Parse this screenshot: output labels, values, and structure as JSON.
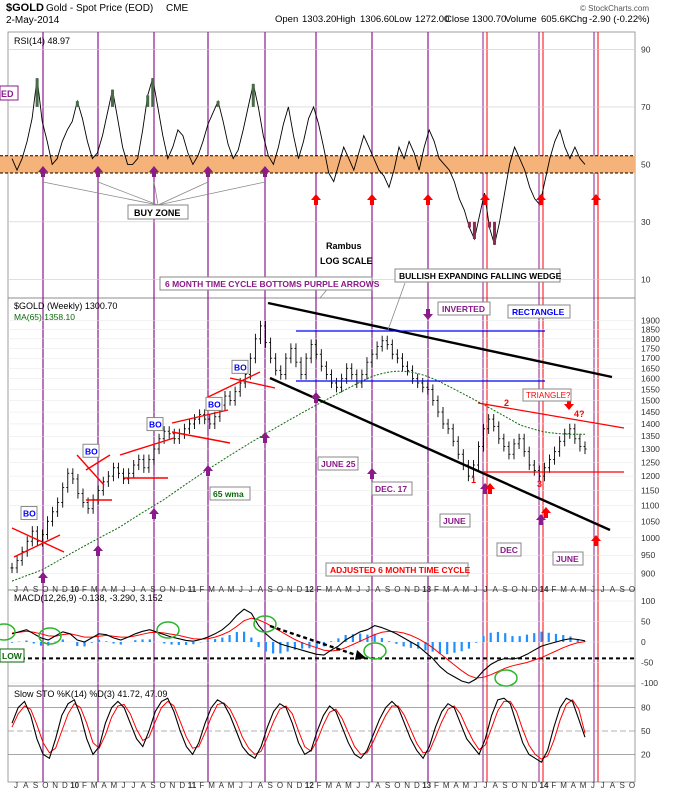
{
  "header": {
    "symbol": "$GOLD",
    "name": "Gold - Spot Price (EOD)",
    "exchange": "CME",
    "date": "2-May-2014",
    "open_label": "Open",
    "open": "1303.20",
    "high_label": "High",
    "high": "1306.60",
    "low_label": "Low",
    "low": "1272.00",
    "close_label": "Close",
    "close": "1300.70",
    "volume_label": "Volume",
    "volume": "605.6K",
    "chg_label": "Chg",
    "chg": "-2.90 (-0.22%)",
    "watermark": "© StockCharts.com"
  },
  "rsi": {
    "label": "RSI(14) 48.97",
    "scale": [
      90,
      70,
      50,
      30,
      10
    ],
    "left_tag": "ED",
    "buy_zone": "BUY ZONE",
    "purple_arrow_x": [
      43,
      98,
      154,
      208,
      265
    ],
    "red_arrow_x": [
      316,
      372,
      428,
      485,
      541,
      596
    ],
    "values": [
      52,
      48,
      52,
      58,
      66,
      80,
      65,
      58,
      50,
      52,
      58,
      62,
      65,
      72,
      66,
      58,
      52,
      54,
      60,
      68,
      76,
      66,
      56,
      50,
      50,
      52,
      62,
      74,
      80,
      70,
      60,
      52,
      56,
      62,
      60,
      54,
      50,
      53,
      58,
      64,
      68,
      72,
      65,
      57,
      52,
      55,
      62,
      70,
      78,
      70,
      60,
      53,
      50,
      56,
      64,
      70,
      60,
      52,
      58,
      66,
      70,
      64,
      56,
      47,
      44,
      50,
      56,
      52,
      48,
      54,
      60,
      56,
      52,
      48,
      46,
      42,
      48,
      56,
      52,
      58,
      54,
      48,
      56,
      62,
      58,
      52,
      50,
      48,
      44,
      38,
      34,
      28,
      24,
      32,
      40,
      28,
      22,
      30,
      40,
      50,
      56,
      52,
      48,
      42,
      38,
      36,
      44,
      52,
      58,
      62,
      56,
      52,
      56,
      52,
      50
    ]
  },
  "main": {
    "label": "$GOLD (Weekly) 1300.70",
    "ma_label": "MA(65) 1358.10",
    "y_ticks": [
      1900,
      1850,
      1800,
      1750,
      1700,
      1650,
      1600,
      1550,
      1500,
      1450,
      1400,
      1350,
      1300,
      1250,
      1200,
      1150,
      1100,
      1050,
      1000,
      950,
      900
    ],
    "closes": [
      915,
      935,
      960,
      990,
      1020,
      990,
      1010,
      1050,
      1080,
      1110,
      1160,
      1210,
      1190,
      1140,
      1110,
      1090,
      1120,
      1150,
      1180,
      1200,
      1230,
      1210,
      1190,
      1210,
      1240,
      1260,
      1230,
      1260,
      1300,
      1340,
      1370,
      1360,
      1340,
      1360,
      1380,
      1400,
      1420,
      1440,
      1420,
      1400,
      1430,
      1480,
      1520,
      1500,
      1540,
      1580,
      1620,
      1700,
      1800,
      1870,
      1780,
      1700,
      1640,
      1620,
      1700,
      1750,
      1680,
      1620,
      1700,
      1770,
      1720,
      1660,
      1620,
      1580,
      1560,
      1600,
      1650,
      1620,
      1580,
      1620,
      1680,
      1720,
      1760,
      1790,
      1770,
      1720,
      1700,
      1660,
      1640,
      1600,
      1580,
      1560,
      1550,
      1500,
      1450,
      1400,
      1380,
      1330,
      1280,
      1240,
      1200,
      1240,
      1310,
      1380,
      1420,
      1390,
      1340,
      1310,
      1280,
      1320,
      1340,
      1290,
      1240,
      1220,
      1200,
      1230,
      1260,
      1290,
      1330,
      1360,
      1380,
      1340,
      1310,
      1300
    ],
    "ma": [
      880,
      885,
      890,
      895,
      900,
      905,
      910,
      918,
      926,
      934,
      942,
      950,
      958,
      966,
      974,
      982,
      990,
      998,
      1006,
      1014,
      1022,
      1030,
      1040,
      1050,
      1060,
      1070,
      1080,
      1090,
      1100,
      1110,
      1120,
      1132,
      1144,
      1156,
      1168,
      1180,
      1192,
      1204,
      1216,
      1228,
      1240,
      1252,
      1264,
      1276,
      1288,
      1300,
      1312,
      1324,
      1336,
      1348,
      1360,
      1372,
      1384,
      1396,
      1408,
      1420,
      1432,
      1444,
      1456,
      1468,
      1480,
      1492,
      1504,
      1516,
      1528,
      1540,
      1552,
      1564,
      1576,
      1588,
      1600,
      1610,
      1618,
      1625,
      1630,
      1634,
      1636,
      1636,
      1634,
      1630,
      1625,
      1618,
      1610,
      1600,
      1590,
      1578,
      1566,
      1554,
      1542,
      1530,
      1518,
      1506,
      1494,
      1482,
      1470,
      1458,
      1446,
      1434,
      1422,
      1410,
      1398,
      1390,
      1384,
      1378,
      1372,
      1368,
      1364,
      1362,
      1360,
      1359,
      1358,
      1358,
      1358,
      1358
    ],
    "bo_labels": [
      {
        "text": "BO",
        "x": 22,
        "price": 1065
      },
      {
        "text": "BO",
        "x": 84,
        "price": 1280
      },
      {
        "text": "BO",
        "x": 148,
        "price": 1385
      },
      {
        "text": "BO",
        "x": 207,
        "price": 1470
      },
      {
        "text": "BO",
        "x": 233,
        "price": 1640
      }
    ],
    "annotations": {
      "rambus": "Rambus",
      "log_scale": "LOG SCALE",
      "time_cycle": "6 MONTH TIME CYCLE BOTTOMS PURPLE ARROWS",
      "wedge": "BULLISH EXPANDING FALLING WEDGE",
      "inverted": "INVERTED",
      "rectangle": "RECTANGLE",
      "triangle": "TRIANGLE?",
      "wma": "65 wma",
      "june25": "JUNE 25",
      "dec17": "DEC. 17",
      "june1": "JUNE",
      "dec2": "DEC",
      "june2": "JUNE",
      "adjusted": "ADJUSTED 6 MONTH TIME CYCLE",
      "n1": "1",
      "n2": "2",
      "n3": "3",
      "n4": "4?"
    },
    "x_months": [
      "J",
      "A",
      "S",
      "O",
      "N",
      "D",
      "10",
      "F",
      "M",
      "A",
      "M",
      "J",
      "J",
      "A",
      "S",
      "O",
      "N",
      "D",
      "11",
      "F",
      "M",
      "A",
      "M",
      "J",
      "J",
      "A",
      "S",
      "O",
      "N",
      "D",
      "12",
      "F",
      "M",
      "A",
      "M",
      "J",
      "J",
      "A",
      "S",
      "O",
      "N",
      "D",
      "13",
      "F",
      "M",
      "A",
      "M",
      "J",
      "J",
      "A",
      "S",
      "O",
      "N",
      "D",
      "14",
      "F",
      "M",
      "A",
      "M",
      "J",
      "J",
      "A",
      "S",
      "O"
    ]
  },
  "macd": {
    "label": "MACD(12,26,9) -0.138, -3.290, 3.152",
    "scale": [
      100,
      50,
      0,
      -50,
      -100
    ],
    "low_tag": "LOW",
    "line": [
      20,
      25,
      30,
      20,
      10,
      5,
      15,
      25,
      20,
      5,
      0,
      10,
      20,
      18,
      10,
      5,
      12,
      20,
      26,
      30,
      24,
      18,
      12,
      8,
      4,
      2,
      6,
      12,
      20,
      30,
      45,
      65,
      80,
      70,
      40,
      20,
      5,
      -5,
      -10,
      -15,
      -20,
      -25,
      -30,
      -32,
      -20,
      -10,
      5,
      15,
      25,
      30,
      40,
      35,
      28,
      20,
      10,
      0,
      -10,
      -25,
      -40,
      -60,
      -75,
      -85,
      -95,
      -100,
      -90,
      -70,
      -55,
      -45,
      -40,
      -42,
      -38,
      -30,
      -20,
      -10,
      -5,
      0,
      5,
      8,
      6,
      3
    ],
    "signal": [
      22,
      24,
      26,
      24,
      20,
      15,
      14,
      18,
      20,
      16,
      12,
      12,
      14,
      16,
      14,
      12,
      12,
      15,
      19,
      23,
      24,
      22,
      19,
      16,
      12,
      8,
      7,
      8,
      12,
      18,
      26,
      38,
      52,
      58,
      54,
      46,
      36,
      26,
      16,
      6,
      -2,
      -8,
      -14,
      -20,
      -22,
      -20,
      -14,
      -6,
      2,
      10,
      18,
      24,
      26,
      25,
      22,
      16,
      8,
      -2,
      -14,
      -28,
      -42,
      -56,
      -70,
      -82,
      -88,
      -86,
      -80,
      -72,
      -64,
      -58,
      -54,
      -50,
      -44,
      -38,
      -30,
      -22,
      -14,
      -7,
      -2,
      1
    ]
  },
  "sto": {
    "label": "Slow STO %K(14) %D(3) 41.72, 47.09",
    "scale": [
      80,
      50,
      20
    ],
    "k": [
      60,
      80,
      88,
      70,
      40,
      20,
      15,
      40,
      70,
      85,
      90,
      70,
      40,
      20,
      30,
      60,
      80,
      88,
      80,
      60,
      40,
      30,
      50,
      75,
      88,
      92,
      75,
      50,
      30,
      20,
      35,
      60,
      80,
      90,
      85,
      70,
      50,
      30,
      20,
      15,
      30,
      55,
      75,
      85,
      80,
      60,
      35,
      20,
      25,
      50,
      70,
      82,
      75,
      55,
      35,
      20,
      15,
      25,
      45,
      65,
      80,
      88,
      80,
      60,
      40,
      25,
      15,
      30,
      55,
      75,
      85,
      80,
      60,
      40,
      30,
      20,
      40,
      70,
      90,
      92,
      85,
      60,
      35,
      20,
      15,
      10,
      25,
      55,
      80,
      92,
      88,
      65,
      42
    ],
    "d": [
      55,
      72,
      82,
      78,
      58,
      35,
      22,
      28,
      50,
      72,
      85,
      80,
      60,
      35,
      28,
      45,
      68,
      82,
      84,
      72,
      52,
      38,
      42,
      62,
      80,
      88,
      82,
      62,
      42,
      28,
      30,
      48,
      68,
      84,
      86,
      78,
      62,
      42,
      28,
      20,
      24,
      42,
      62,
      78,
      82,
      72,
      50,
      30,
      24,
      38,
      58,
      74,
      78,
      66,
      48,
      30,
      20,
      22,
      36,
      54,
      70,
      82,
      82,
      70,
      52,
      34,
      22,
      24,
      42,
      62,
      78,
      82,
      72,
      54,
      38,
      26,
      32,
      54,
      76,
      88,
      88,
      75,
      52,
      32,
      20,
      14,
      18,
      38,
      64,
      84,
      90,
      78,
      47
    ]
  },
  "colors": {
    "up_bar": "#000000",
    "ma_line": "#0a6a0a",
    "purple": "#8b1a8b",
    "red": "#ff0000",
    "blue": "#0000ff",
    "orange_band": "#f5b37a",
    "hist": "#1e90ff",
    "macd_signal": "#ff0000",
    "sto_d": "#ff0000",
    "rsi_fill": "#4a6b4a",
    "rsi_low_fill": "#8b2a52"
  }
}
